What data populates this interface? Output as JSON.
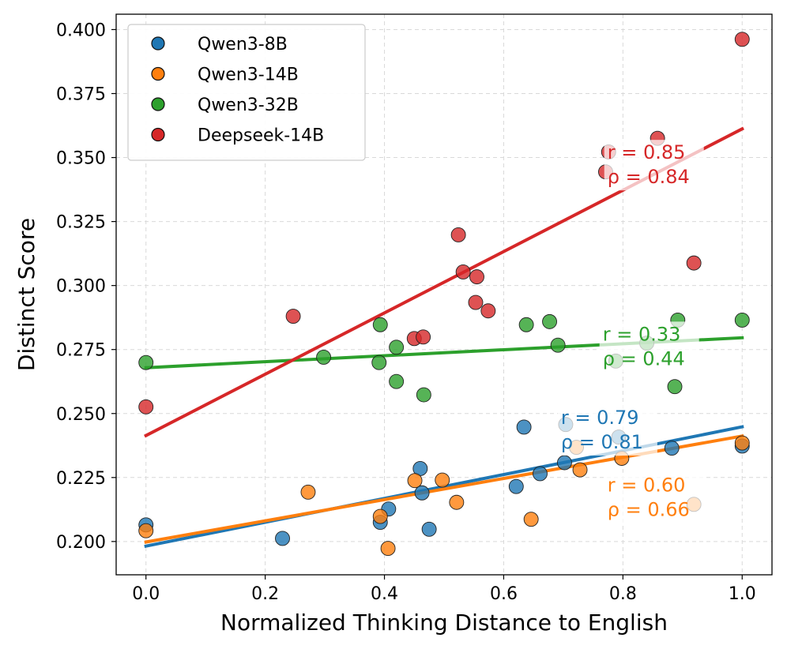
{
  "chart_data": {
    "type": "scatter",
    "xlabel": "Normalized Thinking Distance to English",
    "ylabel": "Distinct Score",
    "xlim": [
      -0.05,
      1.05
    ],
    "ylim": [
      0.187,
      0.406
    ],
    "xticks": [
      "0.0",
      "0.2",
      "0.4",
      "0.6",
      "0.8",
      "1.0"
    ],
    "yticks": [
      "0.200",
      "0.225",
      "0.250",
      "0.275",
      "0.300",
      "0.325",
      "0.350",
      "0.375",
      "0.400"
    ],
    "grid": true,
    "legend_position": "top-left",
    "series": [
      {
        "name": "Qwen3-8B",
        "color": "#1f77b4",
        "points": [
          [
            0.0,
            0.2065
          ],
          [
            0.229,
            0.2012
          ],
          [
            0.393,
            0.2075
          ],
          [
            0.407,
            0.2127
          ],
          [
            0.46,
            0.2285
          ],
          [
            0.463,
            0.219
          ],
          [
            0.475,
            0.2048
          ],
          [
            0.621,
            0.2215
          ],
          [
            0.634,
            0.2447
          ],
          [
            0.661,
            0.2265
          ],
          [
            0.702,
            0.2308
          ],
          [
            0.704,
            0.2457
          ],
          [
            0.793,
            0.2408
          ],
          [
            0.882,
            0.2365
          ],
          [
            1.0,
            0.2373
          ]
        ],
        "fit": {
          "x0": 0.0,
          "y0": 0.1982,
          "x1": 1.0,
          "y1": 0.2448
        },
        "annotation": [
          "r = 0.79",
          "ρ = 0.81"
        ]
      },
      {
        "name": "Qwen3-14B",
        "color": "#ff7f0e",
        "points": [
          [
            0.0,
            0.2042
          ],
          [
            0.272,
            0.2193
          ],
          [
            0.393,
            0.2098
          ],
          [
            0.406,
            0.1973
          ],
          [
            0.451,
            0.2238
          ],
          [
            0.497,
            0.224
          ],
          [
            0.521,
            0.2153
          ],
          [
            0.646,
            0.2087
          ],
          [
            0.722,
            0.2368
          ],
          [
            0.728,
            0.228
          ],
          [
            0.798,
            0.2325
          ],
          [
            0.919,
            0.2145
          ],
          [
            1.0,
            0.2385
          ]
        ],
        "fit": {
          "x0": 0.0,
          "y0": 0.1998,
          "x1": 1.0,
          "y1": 0.2412
        },
        "annotation": [
          "r = 0.60",
          "ρ = 0.66"
        ]
      },
      {
        "name": "Qwen3-32B",
        "color": "#2ca02c",
        "points": [
          [
            0.0,
            0.2699
          ],
          [
            0.298,
            0.272
          ],
          [
            0.391,
            0.2699
          ],
          [
            0.393,
            0.2847
          ],
          [
            0.42,
            0.2759
          ],
          [
            0.42,
            0.2625
          ],
          [
            0.466,
            0.2573
          ],
          [
            0.638,
            0.2847
          ],
          [
            0.677,
            0.2859
          ],
          [
            0.691,
            0.2767
          ],
          [
            0.788,
            0.2705
          ],
          [
            0.84,
            0.2775
          ],
          [
            0.887,
            0.2605
          ],
          [
            0.892,
            0.2865
          ],
          [
            1.0,
            0.2865
          ]
        ],
        "fit": {
          "x0": 0.0,
          "y0": 0.2679,
          "x1": 1.0,
          "y1": 0.2796
        },
        "annotation": [
          "r = 0.33",
          "ρ = 0.44"
        ]
      },
      {
        "name": "Deepseek-14B",
        "color": "#d62728",
        "points": [
          [
            0.0,
            0.2526
          ],
          [
            0.247,
            0.288
          ],
          [
            0.45,
            0.2793
          ],
          [
            0.465,
            0.2799
          ],
          [
            0.524,
            0.3198
          ],
          [
            0.532,
            0.3053
          ],
          [
            0.553,
            0.2934
          ],
          [
            0.555,
            0.3034
          ],
          [
            0.574,
            0.2901
          ],
          [
            0.771,
            0.3444
          ],
          [
            0.776,
            0.3522
          ],
          [
            0.858,
            0.3575
          ],
          [
            0.919,
            0.3088
          ],
          [
            1.0,
            0.3962
          ]
        ],
        "fit": {
          "x0": 0.0,
          "y0": 0.2414,
          "x1": 1.0,
          "y1": 0.3612
        },
        "annotation": [
          "r = 0.85",
          "ρ = 0.84"
        ]
      }
    ]
  }
}
